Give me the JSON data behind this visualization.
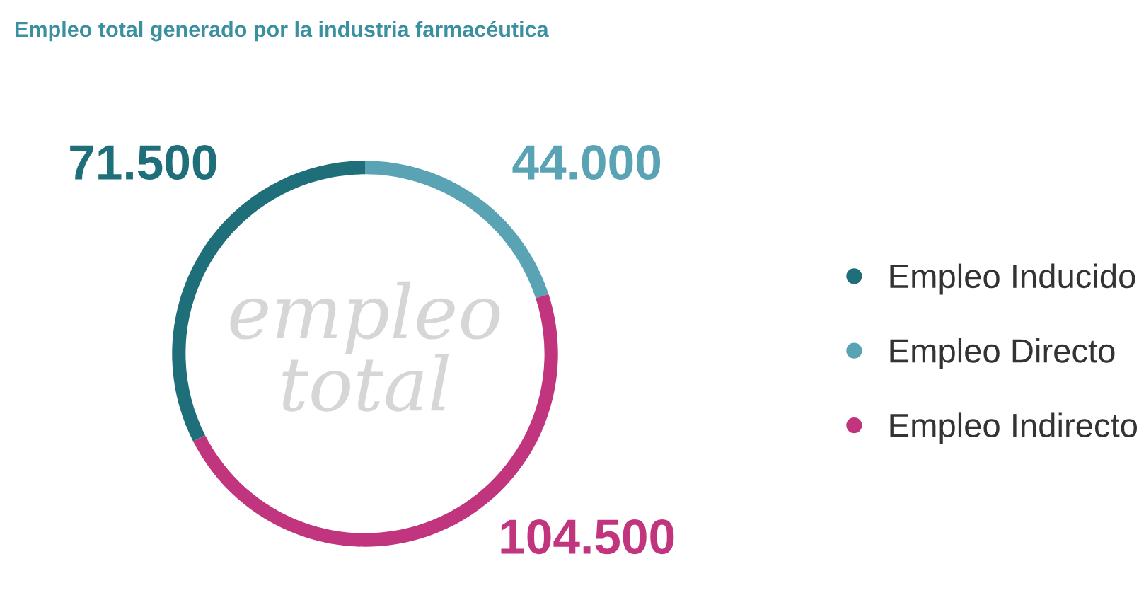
{
  "chart_data": {
    "type": "donut",
    "title": "Empleo total generado por la industria farmacéutica",
    "categories": [
      "Empleo Inducido",
      "Empleo Directo",
      "Empleo Indirecto"
    ],
    "values": [
      71500,
      44000,
      104500
    ],
    "value_labels": [
      "71.500",
      "44.000",
      "104.500"
    ],
    "colors": [
      "#1f6f7a",
      "#5aa3b5",
      "#c0357e"
    ],
    "annotations": [
      "empleo\ntotal"
    ],
    "legend": "right"
  }
}
